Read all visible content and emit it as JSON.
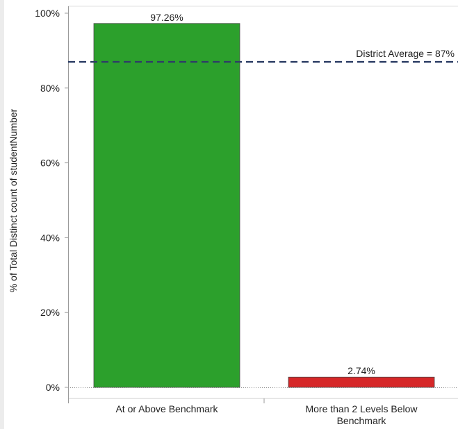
{
  "chart_data": {
    "type": "bar",
    "categories": [
      [
        "At or Above Benchmark"
      ],
      [
        "More than 2 Levels Below",
        "Benchmark"
      ]
    ],
    "values": [
      97.26,
      2.74
    ],
    "data_labels": [
      "97.26%",
      "2.74%"
    ],
    "bar_colors": [
      "#2ca02c",
      "#d62728"
    ],
    "ylabel": "% of Total Distinct count of studentNumber",
    "ylim": [
      0,
      100
    ],
    "yticks": [
      0,
      20,
      40,
      60,
      80,
      100
    ],
    "ytick_labels": [
      "0%",
      "20%",
      "40%",
      "60%",
      "80%",
      "100%"
    ],
    "reference_line": {
      "value": 87,
      "label": "District Average = 87%",
      "color": "#2e3f66",
      "style": "dashed"
    },
    "grid": false,
    "legend": "none"
  }
}
